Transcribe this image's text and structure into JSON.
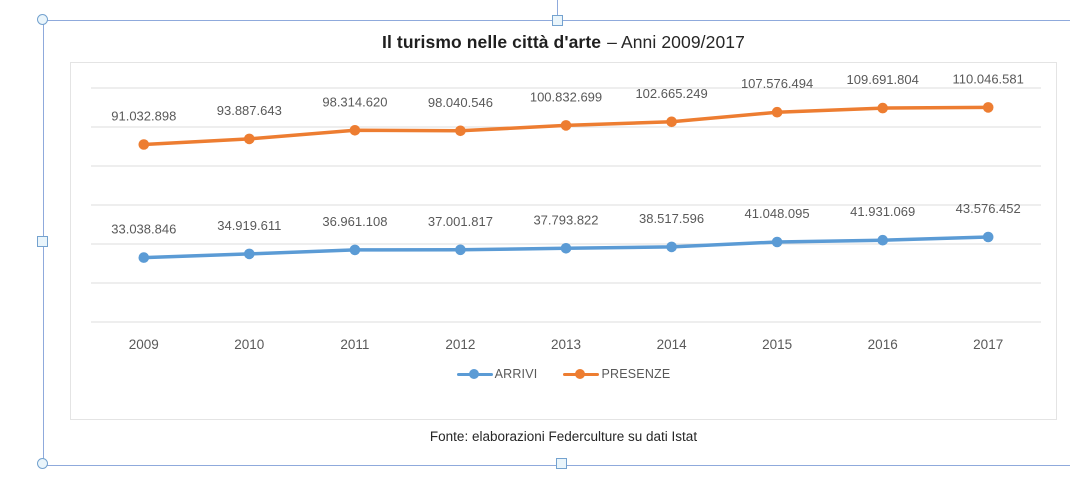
{
  "selection": {
    "frame_color": "#8FAADC",
    "handle_fill": "#EAF5FB",
    "handle_border": "#74A2CF"
  },
  "chart_data": {
    "type": "line",
    "title": "Il turismo nelle città d'arte – Anni 2009/2017",
    "title_bold": "Il turismo nelle città d'arte",
    "title_rest": "– Anni 2009/2017",
    "xlabel": "",
    "ylabel": "",
    "grid": true,
    "legend_position": "bottom",
    "ylim": [
      0,
      120000000
    ],
    "y_major_unit": 20000000,
    "categories": [
      "2009",
      "2010",
      "2011",
      "2012",
      "2013",
      "2014",
      "2015",
      "2016",
      "2017"
    ],
    "series": [
      {
        "name": "ARRIVI",
        "color": "#5B9BD5",
        "values": [
          33038846,
          34919611,
          36961108,
          37001817,
          37793822,
          38517596,
          41048095,
          41931069,
          43576452
        ],
        "labels": [
          "33.038.846",
          "34.919.611",
          "36.961.108",
          "37.001.817",
          "37.793.822",
          "38.517.596",
          "41.048.095",
          "41.931.069",
          "43.576.452"
        ]
      },
      {
        "name": "PRESENZE",
        "color": "#ED7D31",
        "values": [
          91032898,
          93887643,
          98314620,
          98040546,
          100832699,
          102665249,
          107576494,
          109691804,
          110046581
        ],
        "labels": [
          "91.032.898",
          "93.887.643",
          "98.314.620",
          "98.040.546",
          "100.832.699",
          "102.665.249",
          "107.576.494",
          "109.691.804",
          "110.046.581"
        ]
      }
    ],
    "label_color": "#595959",
    "axis_label_color": "#595959",
    "gridline_color": "#dedede",
    "source_note": "Fonte: elaborazioni Federculture su dati Istat"
  }
}
